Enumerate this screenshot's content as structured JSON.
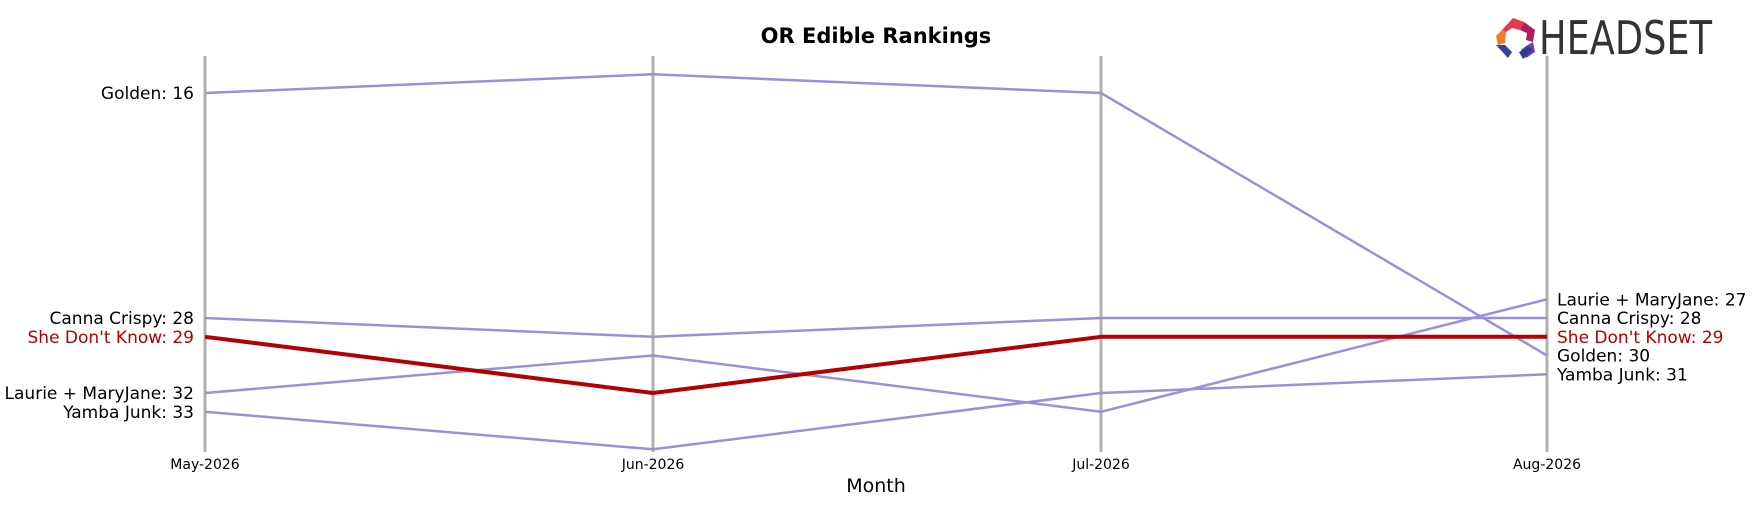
{
  "chart_data": {
    "type": "line",
    "title": "OR Edible Rankings",
    "xlabel": "Month",
    "ylabel": "",
    "categories": [
      "May-2026",
      "Jun-2026",
      "Jul-2026",
      "Aug-2026"
    ],
    "ylim": [
      14.9,
      35.9
    ],
    "y_inverted": true,
    "grid": false,
    "series": [
      {
        "name": "Golden",
        "values": [
          16,
          15,
          16,
          30
        ],
        "color": "#9b8fdc",
        "highlight": false
      },
      {
        "name": "Canna Crispy",
        "values": [
          28,
          29,
          28,
          28
        ],
        "color": "#9b8fdc",
        "highlight": false
      },
      {
        "name": "Laurie + MaryJane",
        "values": [
          32,
          30,
          33,
          27
        ],
        "color": "#9b8fdc",
        "highlight": false
      },
      {
        "name": "Yamba Junk",
        "values": [
          33,
          35,
          32,
          31
        ],
        "color": "#9b8fdc",
        "highlight": false
      },
      {
        "name": "She Don't Know",
        "values": [
          29,
          32,
          29,
          29
        ],
        "color": "#b30000",
        "highlight": true
      }
    ],
    "left_labels": [
      {
        "text": "Golden: 16",
        "value": 16,
        "highlight": false
      },
      {
        "text": "Canna Crispy: 28",
        "value": 28,
        "highlight": false
      },
      {
        "text": "She Don't Know: 29",
        "value": 29,
        "highlight": true
      },
      {
        "text": "Laurie + MaryJane: 32",
        "value": 32,
        "highlight": false
      },
      {
        "text": "Yamba Junk: 33",
        "value": 33,
        "highlight": false
      }
    ],
    "right_labels": [
      {
        "text": "Laurie + MaryJane: 27",
        "value": 27,
        "highlight": false
      },
      {
        "text": "Canna Crispy: 28",
        "value": 28,
        "highlight": false
      },
      {
        "text": "She Don't Know: 29",
        "value": 29,
        "highlight": true
      },
      {
        "text": "Golden: 30",
        "value": 30,
        "highlight": false
      },
      {
        "text": "Yamba Junk: 31",
        "value": 31,
        "highlight": false
      }
    ]
  },
  "logo": {
    "text": "HEADSET"
  },
  "colors": {
    "series_default": "#9b8fdc",
    "highlight": "#b30000",
    "vertical_axis": "#b0b0b0",
    "text": "#000000"
  }
}
